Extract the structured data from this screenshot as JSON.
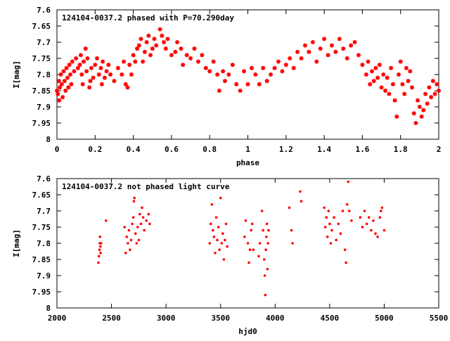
{
  "colors": {
    "points": "#ff0000",
    "axes": "#000000",
    "background": "#ffffff"
  },
  "chart_data": [
    {
      "type": "scatter",
      "title": "124104-0037.2 phased with P=70.290day",
      "xlabel": "phase",
      "ylabel": "I[mag]",
      "xlim": [
        0,
        2
      ],
      "ylim": [
        8,
        7.6
      ],
      "y_inverted": true,
      "grid": false,
      "xticks": [
        "0",
        "0.2",
        "0.4",
        "0.6",
        "0.8",
        "1",
        "1.2",
        "1.4",
        "1.6",
        "1.8",
        "2"
      ],
      "yticks": [
        "7.6",
        "7.65",
        "7.7",
        "7.75",
        "7.8",
        "7.85",
        "7.9",
        "7.95",
        "8"
      ],
      "series": [
        {
          "marker": "star",
          "points": [
            [
              0.0,
              7.85
            ],
            [
              0.005,
              7.86
            ],
            [
              0.01,
              7.82
            ],
            [
              0.012,
              7.88
            ],
            [
              0.015,
              7.84
            ],
            [
              0.02,
              7.8
            ],
            [
              0.025,
              7.83
            ],
            [
              0.03,
              7.87
            ],
            [
              0.035,
              7.79
            ],
            [
              0.04,
              7.82
            ],
            [
              0.045,
              7.85
            ],
            [
              0.05,
              7.78
            ],
            [
              0.055,
              7.81
            ],
            [
              0.06,
              7.84
            ],
            [
              0.065,
              7.77
            ],
            [
              0.07,
              7.8
            ],
            [
              0.075,
              7.83
            ],
            [
              0.08,
              7.76
            ],
            [
              0.09,
              7.79
            ],
            [
              0.1,
              7.75
            ],
            [
              0.11,
              7.78
            ],
            [
              0.12,
              7.77
            ],
            [
              0.125,
              7.74
            ],
            [
              0.13,
              7.8
            ],
            [
              0.135,
              7.83
            ],
            [
              0.14,
              7.76
            ],
            [
              0.15,
              7.72
            ],
            [
              0.155,
              7.79
            ],
            [
              0.16,
              7.75
            ],
            [
              0.17,
              7.84
            ],
            [
              0.175,
              7.82
            ],
            [
              0.18,
              7.78
            ],
            [
              0.19,
              7.81
            ],
            [
              0.2,
              7.77
            ],
            [
              0.21,
              7.75
            ],
            [
              0.22,
              7.8
            ],
            [
              0.23,
              7.78
            ],
            [
              0.235,
              7.83
            ],
            [
              0.24,
              7.76
            ],
            [
              0.25,
              7.81
            ],
            [
              0.26,
              7.79
            ],
            [
              0.27,
              7.77
            ],
            [
              0.28,
              7.8
            ],
            [
              0.3,
              7.82
            ],
            [
              0.32,
              7.78
            ],
            [
              0.34,
              7.8
            ],
            [
              0.35,
              7.76
            ],
            [
              0.36,
              7.83
            ],
            [
              0.37,
              7.84
            ],
            [
              0.38,
              7.77
            ],
            [
              0.39,
              7.8
            ],
            [
              0.4,
              7.74
            ],
            [
              0.41,
              7.76
            ],
            [
              0.42,
              7.72
            ],
            [
              0.43,
              7.71
            ],
            [
              0.44,
              7.69
            ],
            [
              0.45,
              7.76
            ],
            [
              0.46,
              7.73
            ],
            [
              0.47,
              7.7
            ],
            [
              0.48,
              7.68
            ],
            [
              0.49,
              7.74
            ],
            [
              0.5,
              7.72
            ],
            [
              0.51,
              7.69
            ],
            [
              0.52,
              7.71
            ],
            [
              0.54,
              7.66
            ],
            [
              0.55,
              7.68
            ],
            [
              0.56,
              7.7
            ],
            [
              0.57,
              7.72
            ],
            [
              0.58,
              7.69
            ],
            [
              0.6,
              7.74
            ],
            [
              0.62,
              7.73
            ],
            [
              0.63,
              7.7
            ],
            [
              0.65,
              7.72
            ],
            [
              0.66,
              7.77
            ],
            [
              0.68,
              7.74
            ],
            [
              0.7,
              7.75
            ],
            [
              0.72,
              7.72
            ],
            [
              0.74,
              7.76
            ],
            [
              0.76,
              7.74
            ],
            [
              0.78,
              7.78
            ],
            [
              0.8,
              7.79
            ],
            [
              0.82,
              7.76
            ],
            [
              0.84,
              7.8
            ],
            [
              0.85,
              7.85
            ],
            [
              0.87,
              7.79
            ],
            [
              0.88,
              7.82
            ],
            [
              0.9,
              7.8
            ],
            [
              0.92,
              7.77
            ],
            [
              0.94,
              7.83
            ],
            [
              0.96,
              7.85
            ],
            [
              0.98,
              7.79
            ],
            [
              1.0,
              7.83
            ],
            [
              1.02,
              7.78
            ],
            [
              1.04,
              7.8
            ],
            [
              1.06,
              7.83
            ],
            [
              1.08,
              7.78
            ],
            [
              1.1,
              7.82
            ],
            [
              1.12,
              7.8
            ],
            [
              1.14,
              7.78
            ],
            [
              1.16,
              7.76
            ],
            [
              1.18,
              7.79
            ],
            [
              1.2,
              7.77
            ],
            [
              1.22,
              7.75
            ],
            [
              1.24,
              7.78
            ],
            [
              1.26,
              7.73
            ],
            [
              1.28,
              7.75
            ],
            [
              1.3,
              7.71
            ],
            [
              1.32,
              7.73
            ],
            [
              1.34,
              7.7
            ],
            [
              1.36,
              7.76
            ],
            [
              1.38,
              7.72
            ],
            [
              1.4,
              7.69
            ],
            [
              1.42,
              7.74
            ],
            [
              1.44,
              7.71
            ],
            [
              1.46,
              7.73
            ],
            [
              1.48,
              7.69
            ],
            [
              1.5,
              7.72
            ],
            [
              1.52,
              7.75
            ],
            [
              1.54,
              7.71
            ],
            [
              1.56,
              7.7
            ],
            [
              1.58,
              7.74
            ],
            [
              1.6,
              7.77
            ],
            [
              1.62,
              7.8
            ],
            [
              1.63,
              7.76
            ],
            [
              1.64,
              7.83
            ],
            [
              1.65,
              7.79
            ],
            [
              1.66,
              7.82
            ],
            [
              1.67,
              7.78
            ],
            [
              1.68,
              7.81
            ],
            [
              1.69,
              7.77
            ],
            [
              1.7,
              7.84
            ],
            [
              1.71,
              7.8
            ],
            [
              1.72,
              7.85
            ],
            [
              1.73,
              7.81
            ],
            [
              1.74,
              7.86
            ],
            [
              1.75,
              7.78
            ],
            [
              1.76,
              7.83
            ],
            [
              1.77,
              7.88
            ],
            [
              1.78,
              7.93
            ],
            [
              1.79,
              7.8
            ],
            [
              1.8,
              7.76
            ],
            [
              1.81,
              7.83
            ],
            [
              1.82,
              7.86
            ],
            [
              1.83,
              7.78
            ],
            [
              1.84,
              7.82
            ],
            [
              1.85,
              7.79
            ],
            [
              1.86,
              7.84
            ],
            [
              1.87,
              7.92
            ],
            [
              1.88,
              7.95
            ],
            [
              1.89,
              7.88
            ],
            [
              1.9,
              7.9
            ],
            [
              1.91,
              7.93
            ],
            [
              1.92,
              7.91
            ],
            [
              1.93,
              7.86
            ],
            [
              1.94,
              7.89
            ],
            [
              1.95,
              7.84
            ],
            [
              1.96,
              7.87
            ],
            [
              1.97,
              7.82
            ],
            [
              1.98,
              7.86
            ],
            [
              1.99,
              7.83
            ],
            [
              2.0,
              7.85
            ]
          ]
        }
      ]
    },
    {
      "type": "scatter",
      "title": "124104-0037.2 not phased light curve",
      "xlabel": "hjd0",
      "ylabel": "I[mag]",
      "xlim": [
        2000,
        5500
      ],
      "ylim": [
        8,
        7.6
      ],
      "y_inverted": true,
      "grid": false,
      "xticks": [
        "2000",
        "2500",
        "3000",
        "3500",
        "4000",
        "4500",
        "5000",
        "5500"
      ],
      "yticks": [
        "7.6",
        "7.65",
        "7.7",
        "7.75",
        "7.8",
        "7.85",
        "7.9",
        "7.95",
        "8"
      ],
      "series": [
        {
          "marker": "dot",
          "points": [
            [
              2380,
              7.86
            ],
            [
              2385,
              7.84
            ],
            [
              2390,
              7.82
            ],
            [
              2392,
              7.8
            ],
            [
              2395,
              7.78
            ],
            [
              2398,
              7.81
            ],
            [
              2400,
              7.83
            ],
            [
              2405,
              7.8
            ],
            [
              2450,
              7.73
            ],
            [
              2620,
              7.75
            ],
            [
              2630,
              7.83
            ],
            [
              2640,
              7.78
            ],
            [
              2650,
              7.8
            ],
            [
              2660,
              7.76
            ],
            [
              2670,
              7.82
            ],
            [
              2680,
              7.79
            ],
            [
              2690,
              7.74
            ],
            [
              2700,
              7.72
            ],
            [
              2705,
              7.67
            ],
            [
              2710,
              7.66
            ],
            [
              2720,
              7.77
            ],
            [
              2730,
              7.8
            ],
            [
              2740,
              7.75
            ],
            [
              2750,
              7.79
            ],
            [
              2760,
              7.71
            ],
            [
              2770,
              7.74
            ],
            [
              2780,
              7.69
            ],
            [
              2790,
              7.72
            ],
            [
              2800,
              7.76
            ],
            [
              2820,
              7.73
            ],
            [
              2840,
              7.71
            ],
            [
              2850,
              7.74
            ],
            [
              3400,
              7.8
            ],
            [
              3410,
              7.74
            ],
            [
              3420,
              7.68
            ],
            [
              3430,
              7.76
            ],
            [
              3440,
              7.78
            ],
            [
              3450,
              7.83
            ],
            [
              3460,
              7.72
            ],
            [
              3470,
              7.79
            ],
            [
              3480,
              7.75
            ],
            [
              3490,
              7.82
            ],
            [
              3500,
              7.66
            ],
            [
              3510,
              7.8
            ],
            [
              3520,
              7.77
            ],
            [
              3530,
              7.85
            ],
            [
              3540,
              7.79
            ],
            [
              3550,
              7.74
            ],
            [
              3560,
              7.81
            ],
            [
              3720,
              7.78
            ],
            [
              3730,
              7.73
            ],
            [
              3750,
              7.8
            ],
            [
              3760,
              7.86
            ],
            [
              3770,
              7.82
            ],
            [
              3780,
              7.76
            ],
            [
              3790,
              7.74
            ],
            [
              3800,
              7.82
            ],
            [
              3850,
              7.84
            ],
            [
              3860,
              7.8
            ],
            [
              3880,
              7.7
            ],
            [
              3890,
              7.76
            ],
            [
              3900,
              7.85
            ],
            [
              3905,
              7.9
            ],
            [
              3910,
              7.96
            ],
            [
              3915,
              7.82
            ],
            [
              3920,
              7.78
            ],
            [
              3925,
              7.74
            ],
            [
              3930,
              7.88
            ],
            [
              3935,
              7.8
            ],
            [
              3940,
              7.76
            ],
            [
              4130,
              7.69
            ],
            [
              4150,
              7.76
            ],
            [
              4160,
              7.8
            ],
            [
              4230,
              7.64
            ],
            [
              4240,
              7.67
            ],
            [
              4450,
              7.69
            ],
            [
              4460,
              7.75
            ],
            [
              4470,
              7.72
            ],
            [
              4480,
              7.78
            ],
            [
              4490,
              7.7
            ],
            [
              4500,
              7.74
            ],
            [
              4510,
              7.8
            ],
            [
              4520,
              7.76
            ],
            [
              4540,
              7.72
            ],
            [
              4560,
              7.79
            ],
            [
              4580,
              7.74
            ],
            [
              4600,
              7.77
            ],
            [
              4620,
              7.7
            ],
            [
              4640,
              7.82
            ],
            [
              4650,
              7.86
            ],
            [
              4660,
              7.68
            ],
            [
              4670,
              7.61
            ],
            [
              4680,
              7.7
            ],
            [
              4700,
              7.73
            ],
            [
              4780,
              7.72
            ],
            [
              4800,
              7.75
            ],
            [
              4820,
              7.7
            ],
            [
              4840,
              7.74
            ],
            [
              4860,
              7.72
            ],
            [
              4880,
              7.76
            ],
            [
              4900,
              7.73
            ],
            [
              4920,
              7.77
            ],
            [
              4940,
              7.78
            ],
            [
              4960,
              7.72
            ],
            [
              4970,
              7.7
            ],
            [
              4980,
              7.69
            ],
            [
              5000,
              7.76
            ]
          ]
        }
      ]
    }
  ]
}
